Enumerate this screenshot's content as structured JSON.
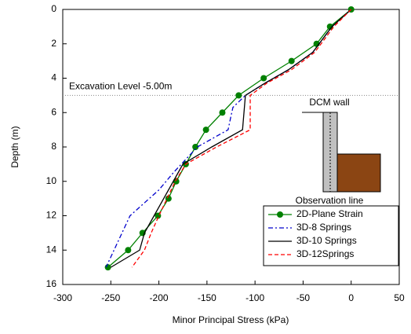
{
  "chart_data": {
    "type": "line",
    "xlabel": "Minor Principal Stress (kPa)",
    "ylabel": "Depth (m)",
    "xlim": [
      -300,
      50
    ],
    "xticks": [
      -300,
      -250,
      -200,
      -150,
      -100,
      -50,
      0,
      50
    ],
    "ylim": [
      0,
      16
    ],
    "yticks": [
      0,
      2,
      4,
      6,
      8,
      10,
      12,
      14,
      16
    ],
    "y_inverted": true,
    "legend": "lower right",
    "series": [
      {
        "name": "2D-Plane Strain",
        "color": "#008000",
        "dash": "solid",
        "marker": "circle",
        "x": [
          0,
          -22,
          -36,
          -62,
          -91,
          -117,
          -134,
          -151,
          -162,
          -172,
          -182,
          -190,
          -201,
          -217,
          -232,
          -253
        ],
        "values": [
          0,
          1,
          2,
          3,
          4,
          5,
          6,
          7,
          8,
          9,
          10,
          11,
          12,
          13,
          14,
          15
        ]
      },
      {
        "name": "3D-8 Springs",
        "color": "#0000cc",
        "dash": "dashdot",
        "marker": "none",
        "x": [
          0,
          -20,
          -40,
          -65,
          -90,
          -110,
          -123,
          -125,
          -128,
          -160,
          -185,
          -200,
          -230,
          -255
        ],
        "values": [
          0,
          1,
          2.5,
          3.5,
          4.3,
          5,
          5.7,
          6.2,
          7,
          8,
          9.5,
          10.5,
          12,
          15
        ]
      },
      {
        "name": "3D-10 Springs",
        "color": "#000000",
        "dash": "solid",
        "marker": "none",
        "x": [
          0,
          -20,
          -40,
          -65,
          -90,
          -110,
          -113,
          -145,
          -175,
          -185,
          -205,
          -215,
          -220,
          -250
        ],
        "values": [
          0,
          1,
          2.5,
          3.5,
          4.3,
          5,
          7,
          8,
          9,
          10,
          12,
          13,
          14,
          15
        ]
      },
      {
        "name": "3D-12Springs",
        "color": "#ff0000",
        "dash": "dashed",
        "marker": "none",
        "x": [
          0,
          -18,
          -38,
          -62,
          -88,
          -105,
          -105,
          -140,
          -172,
          -183,
          -200,
          -208,
          -215,
          -228
        ],
        "values": [
          0,
          1,
          2.5,
          3.5,
          4.3,
          5,
          7,
          8,
          9,
          10,
          12,
          13,
          14,
          15
        ]
      }
    ],
    "annotations": {
      "excavation": {
        "text": "Excavation Level -5.00m",
        "depth": 5
      },
      "wall": "DCM wall",
      "observation": "Observation line"
    }
  }
}
